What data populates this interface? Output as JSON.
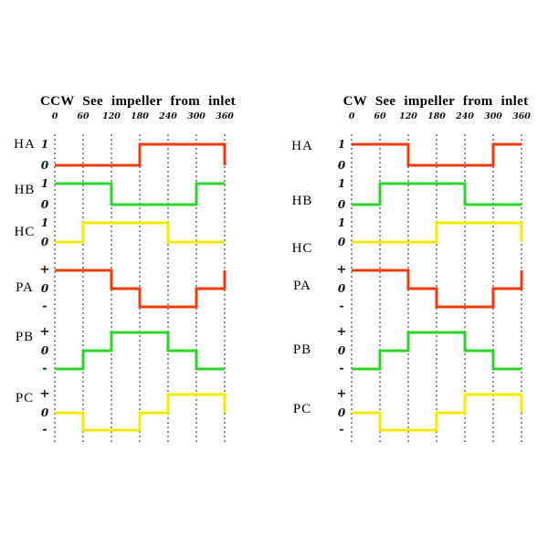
{
  "background": "#ffffff",
  "grid_color": "#1b1b1b",
  "chart_data": [
    {
      "id": "ccw",
      "type": "line",
      "subtype": "step-timing-diagram",
      "title": "CCW See impeller from inlet",
      "x_ticks": [
        "0",
        "60",
        "120",
        "180",
        "240",
        "300",
        "360"
      ],
      "x_range": [
        0,
        360
      ],
      "grid": "vertical-dashed",
      "legend": "none",
      "signals": [
        {
          "label": "HA",
          "kind": "hall",
          "levels": [
            "1",
            "0"
          ],
          "color": "#ee3b0d",
          "wave": [
            [
              0,
              0
            ],
            [
              180,
              1
            ]
          ],
          "end": 0
        },
        {
          "label": "HB",
          "kind": "hall",
          "levels": [
            "1",
            "0"
          ],
          "color": "#2cd42c",
          "wave": [
            [
              0,
              1
            ],
            [
              120,
              0
            ],
            [
              300,
              1
            ]
          ],
          "end": null
        },
        {
          "label": "HC",
          "kind": "hall",
          "levels": [
            "1",
            "0"
          ],
          "color": "#f4ec00",
          "wave": [
            [
              0,
              0
            ],
            [
              60,
              1
            ],
            [
              240,
              0
            ]
          ],
          "end": null
        },
        {
          "label": "PA",
          "kind": "phase",
          "levels": [
            "+",
            "0",
            "-"
          ],
          "color": "#ee3b0d",
          "wave": [
            [
              0,
              1
            ],
            [
              120,
              0
            ],
            [
              180,
              -1
            ],
            [
              300,
              0
            ]
          ],
          "end": 1
        },
        {
          "label": "PB",
          "kind": "phase",
          "levels": [
            "+",
            "0",
            "-"
          ],
          "color": "#2cd42c",
          "wave": [
            [
              0,
              -1
            ],
            [
              60,
              0
            ],
            [
              120,
              1
            ],
            [
              240,
              0
            ],
            [
              300,
              -1
            ]
          ],
          "end": null
        },
        {
          "label": "PC",
          "kind": "phase",
          "levels": [
            "+",
            "0",
            "-"
          ],
          "color": "#f4ec00",
          "wave": [
            [
              0,
              0
            ],
            [
              60,
              -1
            ],
            [
              180,
              0
            ],
            [
              240,
              1
            ]
          ],
          "end": 0
        }
      ]
    },
    {
      "id": "cw",
      "type": "line",
      "subtype": "step-timing-diagram",
      "title": "CW See impeller from inlet",
      "x_ticks": [
        "0",
        "60",
        "120",
        "180",
        "240",
        "300",
        "360"
      ],
      "x_range": [
        0,
        360
      ],
      "grid": "vertical-dashed",
      "legend": "none",
      "signals": [
        {
          "label": "HA",
          "kind": "hall",
          "levels": [
            "1",
            "0"
          ],
          "color": "#ee3b0d",
          "wave": [
            [
              0,
              1
            ],
            [
              120,
              0
            ],
            [
              300,
              1
            ]
          ],
          "end": null
        },
        {
          "label": "HB",
          "kind": "hall",
          "levels": [
            "1",
            "0"
          ],
          "color": "#2cd42c",
          "wave": [
            [
              0,
              0
            ],
            [
              60,
              1
            ],
            [
              240,
              0
            ]
          ],
          "end": null
        },
        {
          "label": "HC",
          "kind": "hall",
          "levels": [
            "1",
            "0"
          ],
          "color": "#f4ec00",
          "wave": [
            [
              0,
              0
            ],
            [
              180,
              1
            ]
          ],
          "end": 0
        },
        {
          "label": "PA",
          "kind": "phase",
          "levels": [
            "+",
            "0",
            "-"
          ],
          "color": "#ee3b0d",
          "wave": [
            [
              0,
              1
            ],
            [
              120,
              0
            ],
            [
              180,
              -1
            ],
            [
              300,
              0
            ]
          ],
          "end": 1
        },
        {
          "label": "PB",
          "kind": "phase",
          "levels": [
            "+",
            "0",
            "-"
          ],
          "color": "#2cd42c",
          "wave": [
            [
              0,
              -1
            ],
            [
              60,
              0
            ],
            [
              120,
              1
            ],
            [
              240,
              0
            ],
            [
              300,
              -1
            ]
          ],
          "end": null
        },
        {
          "label": "PC",
          "kind": "phase",
          "levels": [
            "+",
            "0",
            "-"
          ],
          "color": "#f4ec00",
          "wave": [
            [
              0,
              0
            ],
            [
              60,
              -1
            ],
            [
              180,
              0
            ],
            [
              240,
              1
            ]
          ],
          "end": 0
        }
      ]
    }
  ]
}
